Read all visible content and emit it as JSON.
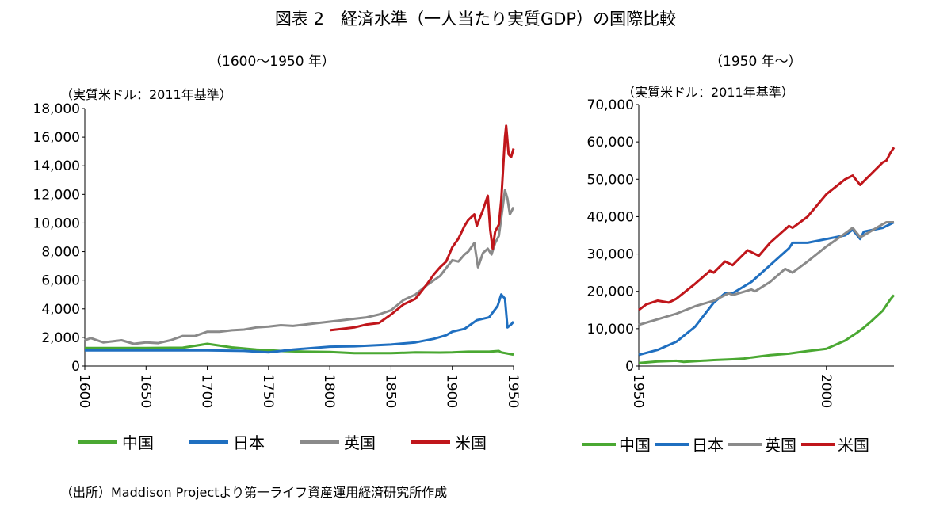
{
  "title": "図表 2　経済水準（一人当たり実質GDP）の国際比較",
  "source": "（出所）Maddison Projectより第一ライフ資産運用経済研究所作成",
  "colors": {
    "china": "#4aa832",
    "japan": "#1f6fc0",
    "uk": "#8a8a8a",
    "us": "#c0161b"
  },
  "chart_data": [
    {
      "type": "line",
      "subtitle": "（1600～1950 年）",
      "unit_label": "（実質米ドル：2011年基準）",
      "xlim": [
        1600,
        1950
      ],
      "ylim": [
        0,
        18000
      ],
      "x_ticks": [
        1600,
        1650,
        1700,
        1750,
        1800,
        1850,
        1900,
        1950
      ],
      "y_ticks": [
        "0",
        "2,000",
        "4,000",
        "6,000",
        "8,000",
        "10,000",
        "12,000",
        "14,000",
        "16,000",
        "18,000"
      ],
      "y_tick_values": [
        0,
        2000,
        4000,
        6000,
        8000,
        10000,
        12000,
        14000,
        16000,
        18000
      ],
      "legend": [
        "中国",
        "日本",
        "英国",
        "米国"
      ],
      "series": [
        {
          "name": "中国",
          "color": "#4aa832",
          "x": [
            1600,
            1650,
            1680,
            1700,
            1720,
            1740,
            1760,
            1780,
            1800,
            1820,
            1850,
            1870,
            1890,
            1900,
            1913,
            1930,
            1938,
            1940,
            1950
          ],
          "y": [
            1260,
            1260,
            1280,
            1550,
            1300,
            1150,
            1050,
            1000,
            980,
            900,
            900,
            950,
            940,
            950,
            1000,
            1000,
            1050,
            950,
            800
          ]
        },
        {
          "name": "日本",
          "color": "#1f6fc0",
          "x": [
            1600,
            1650,
            1700,
            1730,
            1750,
            1770,
            1800,
            1820,
            1850,
            1870,
            1885,
            1895,
            1900,
            1910,
            1920,
            1930,
            1937,
            1940,
            1943,
            1945,
            1948,
            1950
          ],
          "y": [
            1090,
            1090,
            1090,
            1060,
            950,
            1150,
            1350,
            1380,
            1500,
            1650,
            1900,
            2150,
            2400,
            2600,
            3200,
            3400,
            4200,
            5000,
            4700,
            2700,
            2900,
            3100
          ]
        },
        {
          "name": "英国",
          "color": "#8a8a8a",
          "x": [
            1600,
            1605,
            1615,
            1630,
            1640,
            1650,
            1660,
            1670,
            1680,
            1690,
            1700,
            1710,
            1720,
            1730,
            1740,
            1750,
            1760,
            1770,
            1780,
            1790,
            1800,
            1810,
            1820,
            1830,
            1840,
            1850,
            1860,
            1870,
            1880,
            1890,
            1900,
            1905,
            1910,
            1913,
            1918,
            1921,
            1925,
            1929,
            1932,
            1935,
            1938,
            1943,
            1945,
            1947,
            1950
          ],
          "y": [
            1800,
            1950,
            1650,
            1800,
            1550,
            1650,
            1600,
            1800,
            2100,
            2100,
            2400,
            2400,
            2500,
            2550,
            2700,
            2750,
            2850,
            2800,
            2900,
            3000,
            3100,
            3200,
            3300,
            3400,
            3600,
            3900,
            4600,
            5000,
            5700,
            6300,
            7400,
            7300,
            7800,
            8000,
            8600,
            6900,
            7900,
            8200,
            7800,
            8600,
            9100,
            12300,
            11700,
            10600,
            11100
          ]
        },
        {
          "name": "米国",
          "color": "#c0161b",
          "x": [
            1800,
            1810,
            1820,
            1830,
            1840,
            1850,
            1860,
            1870,
            1880,
            1885,
            1890,
            1895,
            1900,
            1905,
            1910,
            1913,
            1918,
            1920,
            1925,
            1929,
            1931,
            1933,
            1935,
            1938,
            1940,
            1943,
            1944,
            1946,
            1948,
            1950
          ],
          "y": [
            2500,
            2600,
            2700,
            2900,
            3000,
            3600,
            4300,
            4700,
            5800,
            6400,
            6900,
            7300,
            8300,
            8900,
            9800,
            10200,
            10600,
            9800,
            10900,
            11900,
            9500,
            8200,
            9400,
            9900,
            11600,
            16000,
            16800,
            14800,
            14600,
            15200
          ]
        }
      ]
    },
    {
      "type": "line",
      "subtitle": "（1950 年～）",
      "unit_label": "（実質米ドル：2011年基準）",
      "xlim": [
        1950,
        2018
      ],
      "ylim": [
        0,
        70000
      ],
      "x_ticks": [
        1950,
        2000
      ],
      "y_ticks": [
        "0",
        "10,000",
        "20,000",
        "30,000",
        "40,000",
        "50,000",
        "60,000",
        "70,000"
      ],
      "y_tick_values": [
        0,
        10000,
        20000,
        30000,
        40000,
        50000,
        60000,
        70000
      ],
      "legend": [
        "中国",
        "日本",
        "英国",
        "米国"
      ],
      "series": [
        {
          "name": "中国",
          "color": "#4aa832",
          "x": [
            1950,
            1955,
            1960,
            1962,
            1965,
            1970,
            1975,
            1978,
            1980,
            1985,
            1990,
            1995,
            2000,
            2005,
            2008,
            2010,
            2012,
            2015,
            2017,
            2018
          ],
          "y": [
            800,
            1200,
            1400,
            1100,
            1300,
            1600,
            1800,
            2000,
            2300,
            2900,
            3300,
            4000,
            4600,
            6800,
            8800,
            10300,
            12000,
            14800,
            17800,
            19000
          ]
        },
        {
          "name": "日本",
          "color": "#1f6fc0",
          "x": [
            1950,
            1955,
            1960,
            1965,
            1970,
            1973,
            1975,
            1980,
            1985,
            1990,
            1991,
            1995,
            2000,
            2005,
            2007,
            2009,
            2010,
            2015,
            2018
          ],
          "y": [
            3000,
            4300,
            6500,
            10500,
            17000,
            19500,
            19500,
            22500,
            27000,
            31500,
            33000,
            33000,
            34000,
            35000,
            36500,
            34000,
            36000,
            37000,
            38500
          ]
        },
        {
          "name": "英国",
          "color": "#8a8a8a",
          "x": [
            1950,
            1955,
            1960,
            1965,
            1970,
            1974,
            1975,
            1980,
            1981,
            1985,
            1989,
            1991,
            1995,
            2000,
            2005,
            2007,
            2009,
            2010,
            2015,
            2016,
            2018
          ],
          "y": [
            11000,
            12500,
            14000,
            16000,
            17500,
            19500,
            19000,
            20500,
            20000,
            22500,
            26000,
            25000,
            28000,
            32000,
            35500,
            37000,
            34500,
            35000,
            38000,
            38500,
            38500
          ]
        },
        {
          "name": "米国",
          "color": "#c0161b",
          "x": [
            1950,
            1952,
            1955,
            1958,
            1960,
            1965,
            1969,
            1970,
            1973,
            1975,
            1979,
            1980,
            1982,
            1985,
            1990,
            1991,
            1995,
            2000,
            2005,
            2007,
            2009,
            2010,
            2015,
            2016,
            2017,
            2018
          ],
          "y": [
            15000,
            16500,
            17500,
            17000,
            18000,
            22000,
            25500,
            25000,
            28000,
            27000,
            31000,
            30500,
            29500,
            33000,
            37500,
            37000,
            40000,
            46000,
            50000,
            51000,
            48500,
            49500,
            54500,
            55000,
            57000,
            58500
          ]
        }
      ]
    }
  ]
}
